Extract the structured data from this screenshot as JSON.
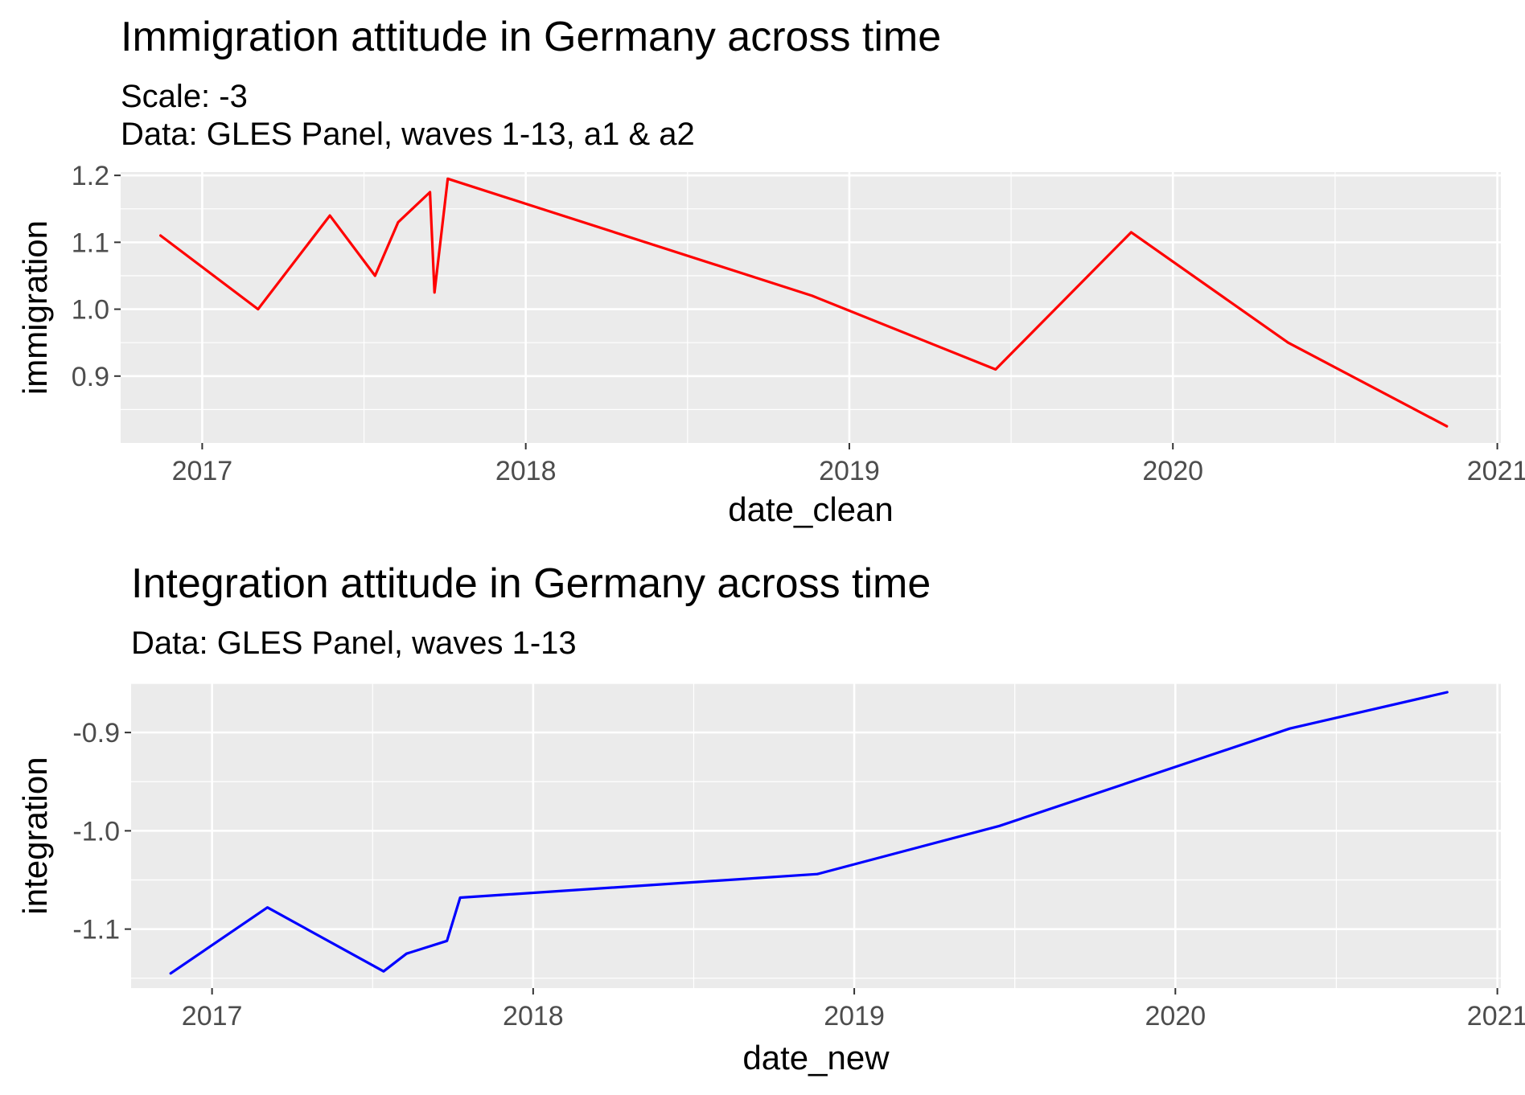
{
  "chart_data": [
    {
      "type": "line",
      "title": "Immigration attitude in Germany across time",
      "subtitle_lines": [
        "Scale: -3",
        "Data: GLES Panel, waves 1-13, a1 & a2"
      ],
      "xlabel": "date_clean",
      "ylabel": "immigration",
      "x_ticks": [
        "2017",
        "2018",
        "2019",
        "2020",
        "2021"
      ],
      "y_ticks": [
        "0.9",
        "1.0",
        "1.1",
        "1.2"
      ],
      "xlim": [
        "2016-10-01",
        "2021-01-05"
      ],
      "ylim": [
        0.8,
        1.205
      ],
      "grid": true,
      "line_color": "#ff0000",
      "series": [
        {
          "points": [
            {
              "x": "2016-11-15",
              "y": 1.11
            },
            {
              "x": "2017-03-05",
              "y": 1.0
            },
            {
              "x": "2017-05-25",
              "y": 1.14
            },
            {
              "x": "2017-07-15",
              "y": 1.05
            },
            {
              "x": "2017-08-10",
              "y": 1.13
            },
            {
              "x": "2017-09-15",
              "y": 1.175
            },
            {
              "x": "2017-09-20",
              "y": 1.025
            },
            {
              "x": "2017-10-05",
              "y": 1.195
            },
            {
              "x": "2018-11-20",
              "y": 1.02
            },
            {
              "x": "2019-06-15",
              "y": 0.91
            },
            {
              "x": "2019-11-15",
              "y": 1.115
            },
            {
              "x": "2020-05-10",
              "y": 0.95
            },
            {
              "x": "2020-11-05",
              "y": 0.825
            }
          ]
        }
      ]
    },
    {
      "type": "line",
      "title": "Integration attitude in Germany across time",
      "subtitle_lines": [
        "Data: GLES Panel, waves 1-13"
      ],
      "xlabel": "date_new",
      "ylabel": "integration",
      "x_ticks": [
        "2017",
        "2018",
        "2019",
        "2020",
        "2021"
      ],
      "y_ticks": [
        "-0.9",
        "-1.0",
        "-1.1"
      ],
      "xlim": [
        "2016-10-01",
        "2021-01-05"
      ],
      "ylim": [
        -1.16,
        -0.85
      ],
      "grid": true,
      "line_color": "#0000ff",
      "series": [
        {
          "points": [
            {
              "x": "2016-11-15",
              "y": -1.145
            },
            {
              "x": "2017-03-05",
              "y": -1.078
            },
            {
              "x": "2017-07-15",
              "y": -1.143
            },
            {
              "x": "2017-08-10",
              "y": -1.125
            },
            {
              "x": "2017-09-25",
              "y": -1.112
            },
            {
              "x": "2017-10-10",
              "y": -1.068
            },
            {
              "x": "2018-11-20",
              "y": -1.044
            },
            {
              "x": "2019-06-15",
              "y": -0.995
            },
            {
              "x": "2020-05-10",
              "y": -0.896
            },
            {
              "x": "2020-11-05",
              "y": -0.859
            }
          ]
        }
      ]
    }
  ]
}
